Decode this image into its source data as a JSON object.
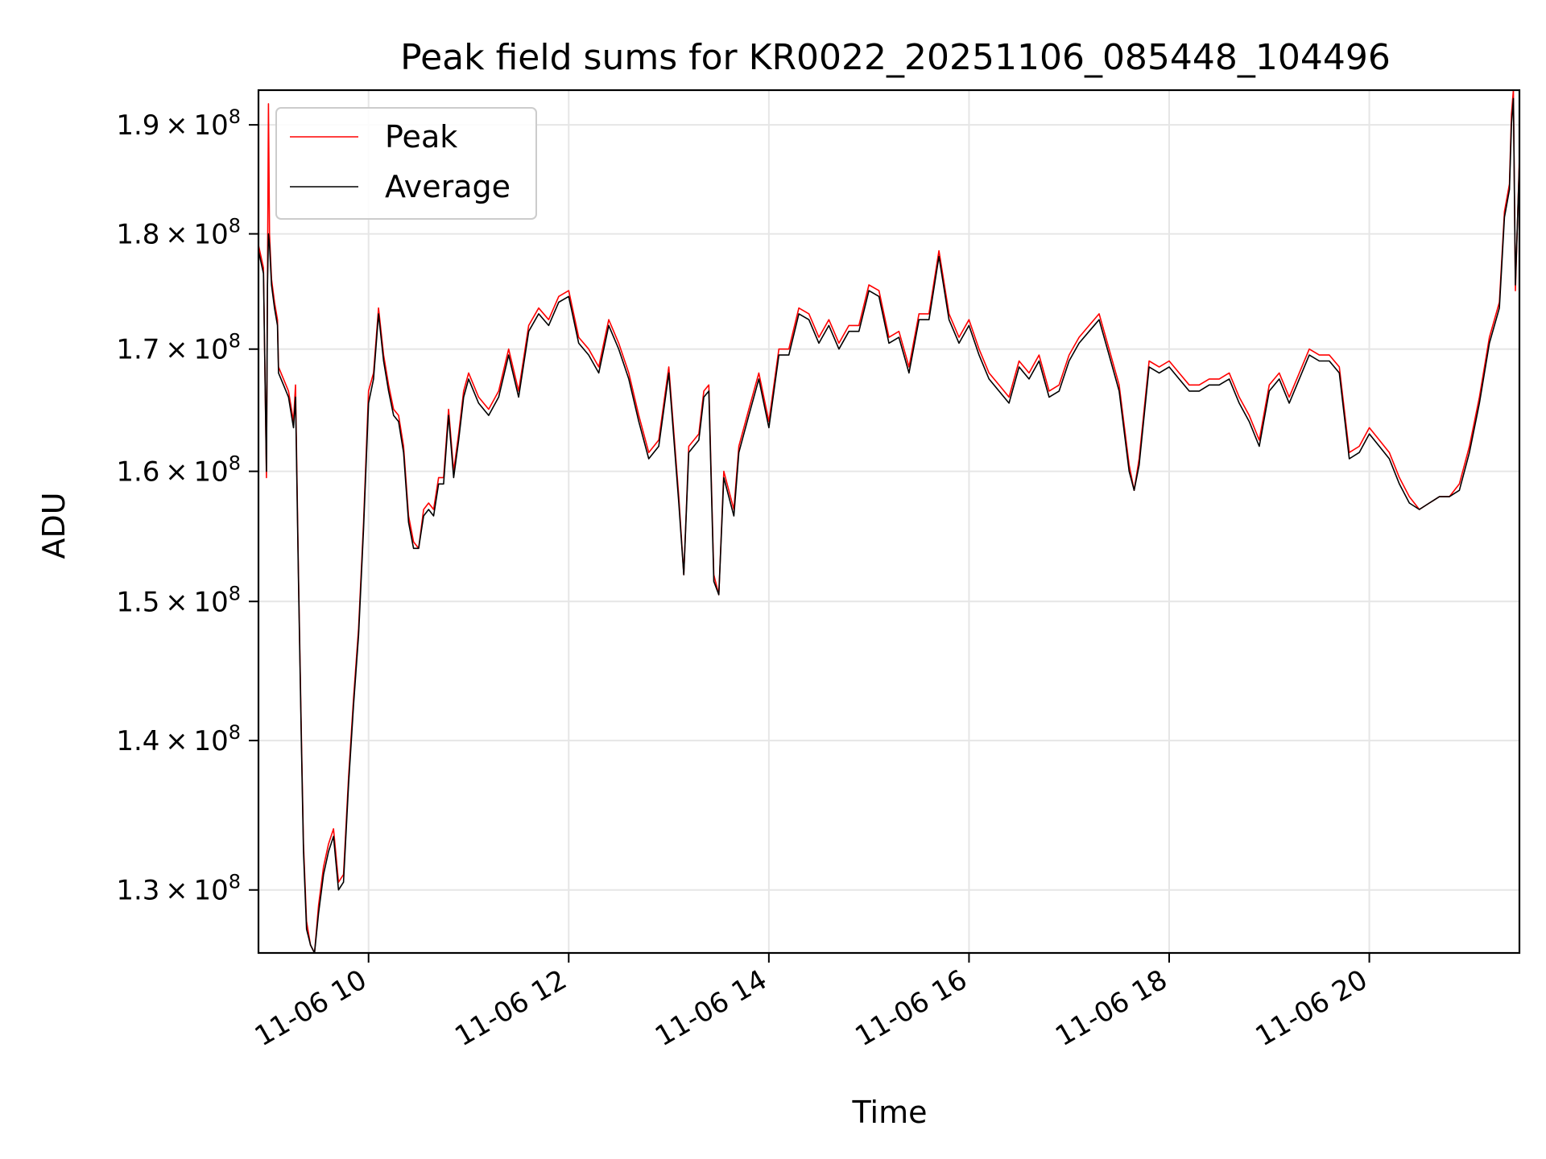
{
  "chart_data": {
    "type": "line",
    "title": "Peak field sums for KR0022_20251106_085448_104496",
    "xlabel": "Time",
    "ylabel": "ADU",
    "yscale": "log",
    "xlim": [
      8.9,
      21.5
    ],
    "ylim": [
      126000000,
      193300000
    ],
    "grid": true,
    "legend_position": "top-left",
    "x_ticks": [
      10,
      12,
      14,
      16,
      18,
      20
    ],
    "x_tick_labels": [
      "11-06 10",
      "11-06 12",
      "11-06 14",
      "11-06 16",
      "11-06 18",
      "11-06 20"
    ],
    "y_ticks": [
      130000000,
      140000000,
      150000000,
      160000000,
      170000000,
      180000000,
      190000000
    ],
    "y_tick_labels": [
      {
        "mantissa": "1.3",
        "times": "×",
        "base": "10",
        "exp": "8"
      },
      {
        "mantissa": "1.4",
        "times": "×",
        "base": "10",
        "exp": "8"
      },
      {
        "mantissa": "1.5",
        "times": "×",
        "base": "10",
        "exp": "8"
      },
      {
        "mantissa": "1.6",
        "times": "×",
        "base": "10",
        "exp": "8"
      },
      {
        "mantissa": "1.7",
        "times": "×",
        "base": "10",
        "exp": "8"
      },
      {
        "mantissa": "1.8",
        "times": "×",
        "base": "10",
        "exp": "8"
      },
      {
        "mantissa": "1.9",
        "times": "×",
        "base": "10",
        "exp": "8"
      }
    ],
    "x_unit": "hours on 2025-11-06",
    "series": [
      {
        "name": "Peak",
        "color": "#ff0000",
        "x": [
          8.9,
          8.95,
          8.98,
          8.99,
          9.0,
          9.01,
          9.03,
          9.06,
          9.09,
          9.1,
          9.15,
          9.2,
          9.25,
          9.27,
          9.3,
          9.33,
          9.35,
          9.38,
          9.42,
          9.46,
          9.5,
          9.55,
          9.6,
          9.65,
          9.7,
          9.75,
          9.8,
          9.85,
          9.9,
          9.95,
          10.0,
          10.05,
          10.1,
          10.15,
          10.2,
          10.25,
          10.3,
          10.35,
          10.4,
          10.45,
          10.5,
          10.55,
          10.6,
          10.65,
          10.7,
          10.75,
          10.8,
          10.85,
          10.9,
          10.95,
          11.0,
          11.1,
          11.2,
          11.3,
          11.4,
          11.5,
          11.6,
          11.7,
          11.8,
          11.9,
          12.0,
          12.1,
          12.2,
          12.3,
          12.4,
          12.5,
          12.6,
          12.7,
          12.8,
          12.9,
          13.0,
          13.1,
          13.15,
          13.2,
          13.3,
          13.35,
          13.4,
          13.45,
          13.5,
          13.55,
          13.6,
          13.65,
          13.7,
          13.8,
          13.9,
          14.0,
          14.1,
          14.2,
          14.3,
          14.4,
          14.5,
          14.6,
          14.7,
          14.8,
          14.9,
          15.0,
          15.1,
          15.2,
          15.3,
          15.4,
          15.5,
          15.6,
          15.7,
          15.8,
          15.9,
          16.0,
          16.1,
          16.2,
          16.3,
          16.4,
          16.5,
          16.6,
          16.7,
          16.8,
          16.9,
          17.0,
          17.1,
          17.2,
          17.3,
          17.4,
          17.5,
          17.6,
          17.65,
          17.7,
          17.8,
          17.9,
          18.0,
          18.1,
          18.2,
          18.3,
          18.4,
          18.5,
          18.6,
          18.7,
          18.8,
          18.9,
          19.0,
          19.1,
          19.2,
          19.3,
          19.4,
          19.5,
          19.6,
          19.7,
          19.8,
          19.9,
          20.0,
          20.1,
          20.2,
          20.3,
          20.4,
          20.5,
          20.6,
          20.7,
          20.8,
          20.9,
          21.0,
          21.1,
          21.2,
          21.3,
          21.35,
          21.4,
          21.42,
          21.44,
          21.46,
          21.5
        ],
        "y": [
          179000000,
          177000000,
          159500000,
          176000000,
          192000000,
          180000000,
          176000000,
          174000000,
          172500000,
          168500000,
          167500000,
          166500000,
          164000000,
          167000000,
          152000000,
          140000000,
          133000000,
          128000000,
          126500000,
          126000000,
          129000000,
          131500000,
          133000000,
          134000000,
          130500000,
          131000000,
          137500000,
          143000000,
          148000000,
          156000000,
          166500000,
          168000000,
          173500000,
          169500000,
          167000000,
          165000000,
          164500000,
          162000000,
          156500000,
          154500000,
          154000000,
          157000000,
          157500000,
          157000000,
          159500000,
          159500000,
          165000000,
          160000000,
          163000000,
          166500000,
          168000000,
          166000000,
          165000000,
          166500000,
          170000000,
          166500000,
          172000000,
          173500000,
          172500000,
          174500000,
          175000000,
          171000000,
          170000000,
          168500000,
          172500000,
          170500000,
          168000000,
          164500000,
          161500000,
          162500000,
          168500000,
          158000000,
          152000000,
          162000000,
          163000000,
          166500000,
          167000000,
          152000000,
          150500000,
          160000000,
          158500000,
          157000000,
          162000000,
          165000000,
          168000000,
          164000000,
          170000000,
          170000000,
          173500000,
          173000000,
          171000000,
          172500000,
          170500000,
          172000000,
          172000000,
          175500000,
          175000000,
          171000000,
          171500000,
          168500000,
          173000000,
          173000000,
          178500000,
          173000000,
          171000000,
          172500000,
          170000000,
          168000000,
          167000000,
          166000000,
          169000000,
          168000000,
          169500000,
          166500000,
          167000000,
          169500000,
          171000000,
          172000000,
          173000000,
          170000000,
          167000000,
          160500000,
          158500000,
          161000000,
          169000000,
          168500000,
          169000000,
          168000000,
          167000000,
          167000000,
          167500000,
          167500000,
          168000000,
          166000000,
          164500000,
          162500000,
          167000000,
          168000000,
          166000000,
          168000000,
          170000000,
          169500000,
          169500000,
          168500000,
          161500000,
          162000000,
          163500000,
          162500000,
          161500000,
          159500000,
          158000000,
          157000000,
          157500000,
          158000000,
          158000000,
          159000000,
          162000000,
          166000000,
          171000000,
          174000000,
          182000000,
          184500000,
          191000000,
          193300000,
          175000000,
          187000000
        ]
      },
      {
        "name": "Average",
        "color": "#000000",
        "x": [
          8.9,
          8.95,
          8.98,
          8.99,
          9.0,
          9.01,
          9.03,
          9.06,
          9.09,
          9.1,
          9.15,
          9.2,
          9.25,
          9.27,
          9.3,
          9.33,
          9.35,
          9.38,
          9.42,
          9.46,
          9.5,
          9.55,
          9.6,
          9.65,
          9.7,
          9.75,
          9.8,
          9.85,
          9.9,
          9.95,
          10.0,
          10.05,
          10.1,
          10.15,
          10.2,
          10.25,
          10.3,
          10.35,
          10.4,
          10.45,
          10.5,
          10.55,
          10.6,
          10.65,
          10.7,
          10.75,
          10.8,
          10.85,
          10.9,
          10.95,
          11.0,
          11.1,
          11.2,
          11.3,
          11.4,
          11.5,
          11.6,
          11.7,
          11.8,
          11.9,
          12.0,
          12.1,
          12.2,
          12.3,
          12.4,
          12.5,
          12.6,
          12.7,
          12.8,
          12.9,
          13.0,
          13.1,
          13.15,
          13.2,
          13.3,
          13.35,
          13.4,
          13.45,
          13.5,
          13.55,
          13.6,
          13.65,
          13.7,
          13.8,
          13.9,
          14.0,
          14.1,
          14.2,
          14.3,
          14.4,
          14.5,
          14.6,
          14.7,
          14.8,
          14.9,
          15.0,
          15.1,
          15.2,
          15.3,
          15.4,
          15.5,
          15.6,
          15.7,
          15.8,
          15.9,
          16.0,
          16.1,
          16.2,
          16.3,
          16.4,
          16.5,
          16.6,
          16.7,
          16.8,
          16.9,
          17.0,
          17.1,
          17.2,
          17.3,
          17.4,
          17.5,
          17.6,
          17.65,
          17.7,
          17.8,
          17.9,
          18.0,
          18.1,
          18.2,
          18.3,
          18.4,
          18.5,
          18.6,
          18.7,
          18.8,
          18.9,
          19.0,
          19.1,
          19.2,
          19.3,
          19.4,
          19.5,
          19.6,
          19.7,
          19.8,
          19.9,
          20.0,
          20.1,
          20.2,
          20.3,
          20.4,
          20.5,
          20.6,
          20.7,
          20.8,
          20.9,
          21.0,
          21.1,
          21.2,
          21.3,
          21.35,
          21.4,
          21.42,
          21.44,
          21.46,
          21.5
        ],
        "y": [
          178500000,
          176500000,
          160000000,
          175500000,
          180000000,
          179000000,
          175500000,
          173500000,
          172000000,
          168000000,
          167000000,
          166000000,
          163500000,
          166000000,
          151500000,
          139500000,
          132500000,
          127500000,
          126500000,
          126000000,
          128500000,
          131000000,
          132500000,
          133500000,
          130000000,
          130500000,
          137000000,
          142500000,
          147500000,
          155500000,
          165500000,
          167500000,
          173000000,
          169000000,
          166500000,
          164500000,
          164000000,
          161500000,
          156000000,
          154000000,
          154000000,
          156500000,
          157000000,
          156500000,
          159000000,
          159000000,
          164500000,
          159500000,
          162500000,
          166000000,
          167500000,
          165500000,
          164500000,
          166000000,
          169500000,
          166000000,
          171500000,
          173000000,
          172000000,
          174000000,
          174500000,
          170500000,
          169500000,
          168000000,
          172000000,
          170000000,
          167500000,
          164000000,
          161000000,
          162000000,
          168000000,
          157500000,
          152000000,
          161500000,
          162500000,
          166000000,
          166500000,
          151500000,
          150500000,
          159500000,
          158000000,
          156500000,
          161500000,
          164500000,
          167500000,
          163500000,
          169500000,
          169500000,
          173000000,
          172500000,
          170500000,
          172000000,
          170000000,
          171500000,
          171500000,
          175000000,
          174500000,
          170500000,
          171000000,
          168000000,
          172500000,
          172500000,
          178000000,
          172500000,
          170500000,
          172000000,
          169500000,
          167500000,
          166500000,
          165500000,
          168500000,
          167500000,
          169000000,
          166000000,
          166500000,
          169000000,
          170500000,
          171500000,
          172500000,
          169500000,
          166500000,
          160000000,
          158500000,
          160500000,
          168500000,
          168000000,
          168500000,
          167500000,
          166500000,
          166500000,
          167000000,
          167000000,
          167500000,
          165500000,
          164000000,
          162000000,
          166500000,
          167500000,
          165500000,
          167500000,
          169500000,
          169000000,
          169000000,
          168000000,
          161000000,
          161500000,
          163000000,
          162000000,
          161000000,
          159000000,
          157500000,
          157000000,
          157500000,
          158000000,
          158000000,
          158500000,
          161500000,
          165500000,
          170500000,
          173500000,
          181500000,
          184000000,
          190000000,
          192500000,
          175500000,
          186500000
        ]
      }
    ]
  }
}
